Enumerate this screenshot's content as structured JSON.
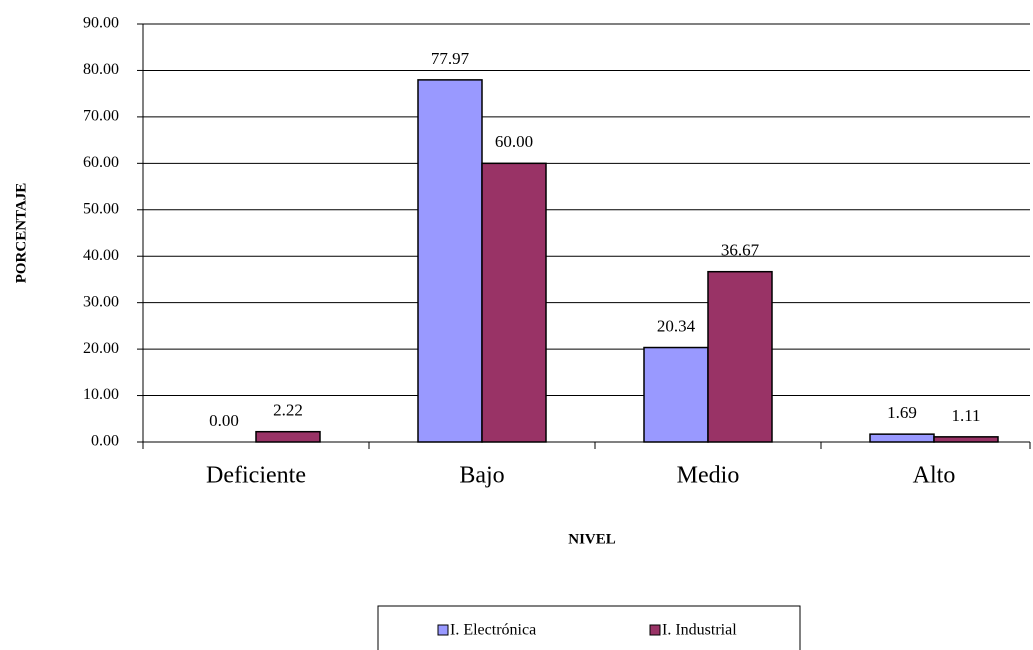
{
  "chart_data": {
    "type": "bar",
    "x_label": "NIVEL",
    "y_label": "PORCENTAJE",
    "categories": [
      "Deficiente",
      "Bajo",
      "Medio",
      "Alto"
    ],
    "series": [
      {
        "name": "I. Electrónica",
        "color": "#9999ff",
        "values": [
          0,
          77.97,
          20.34,
          1.69
        ],
        "value_labels": [
          "0.00",
          "77.97",
          "20.34",
          "1.69"
        ]
      },
      {
        "name": "I. Industrial",
        "color": "#993366",
        "values": [
          2.22,
          60,
          36.67,
          1.11
        ],
        "value_labels": [
          "2.22",
          "60.00",
          "36.67",
          "1.11"
        ]
      }
    ],
    "ylim": [
      0,
      90
    ],
    "yticks": [
      {
        "value": 0,
        "label": "0.00"
      },
      {
        "value": 10,
        "label": "10.00"
      },
      {
        "value": 20,
        "label": "20.00"
      },
      {
        "value": 30,
        "label": "30.00"
      },
      {
        "value": 40,
        "label": "40.00"
      },
      {
        "value": 50,
        "label": "50.00"
      },
      {
        "value": 60,
        "label": "60.00"
      },
      {
        "value": 70,
        "label": "70.00"
      },
      {
        "value": 80,
        "label": "80.00"
      },
      {
        "value": 90,
        "label": "90.00"
      }
    ],
    "grid": true,
    "legend": "bottom"
  }
}
